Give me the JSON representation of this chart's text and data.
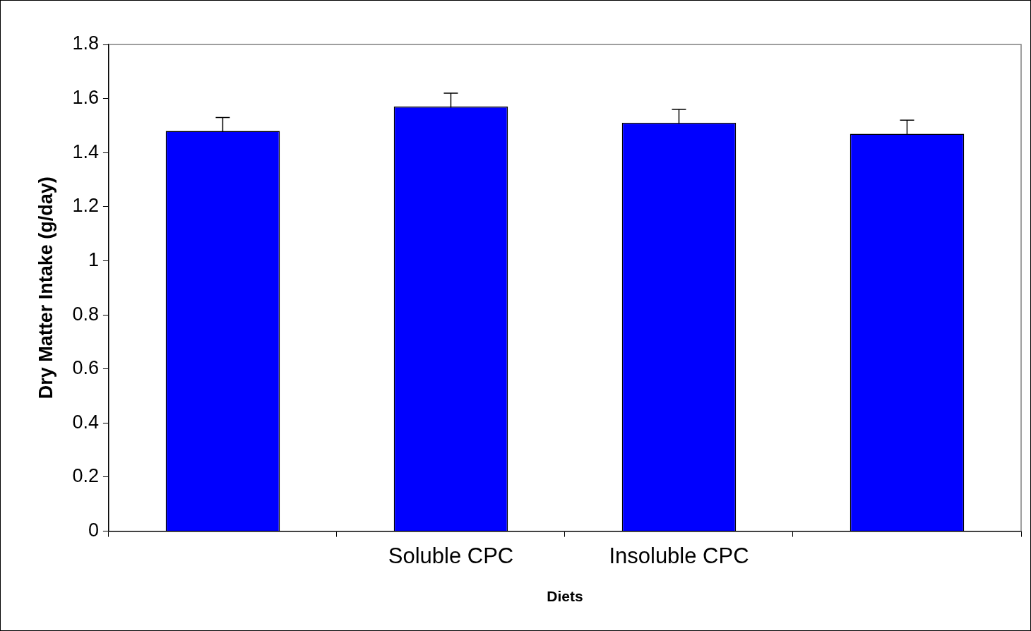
{
  "chart_data": {
    "type": "bar",
    "xlabel": "Diets",
    "ylabel": "Dry Matter Intake (g/day)",
    "categories": [
      null,
      "Soluble CPC",
      "Insoluble CPC",
      null
    ],
    "values": [
      1.48,
      1.57,
      1.51,
      1.47
    ],
    "errors": [
      0.05,
      0.05,
      0.05,
      0.05
    ],
    "color": "#0000ff",
    "ylim": [
      0,
      1.8
    ],
    "yticks": [
      0,
      0.2,
      0.4,
      0.6,
      0.8,
      1,
      1.2,
      1.4,
      1.6,
      1.8
    ],
    "grid": false,
    "legend": false
  }
}
